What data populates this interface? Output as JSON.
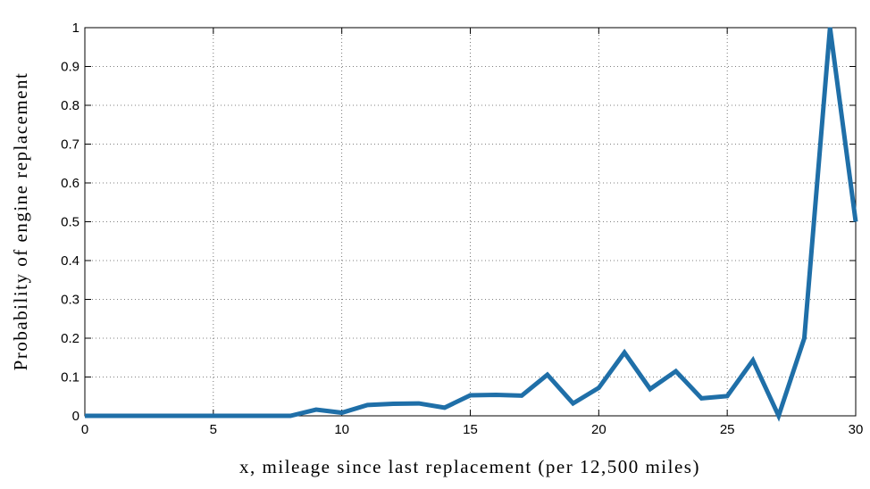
{
  "chart_data": {
    "type": "line",
    "xlabel": "x, mileage since last replacement (per 12,500 miles)",
    "ylabel": "Probability of engine replacement",
    "x": [
      0,
      1,
      2,
      3,
      4,
      5,
      6,
      7,
      8,
      9,
      10,
      11,
      12,
      13,
      14,
      15,
      16,
      17,
      18,
      19,
      20,
      21,
      22,
      23,
      24,
      25,
      26,
      27,
      28,
      29,
      30
    ],
    "series": [
      {
        "color": "#1f6fa8",
        "values": [
          0,
          0,
          0,
          0,
          0,
          0,
          0,
          0,
          0,
          0.016,
          0.008,
          0.028,
          0.031,
          0.032,
          0.021,
          0.053,
          0.054,
          0.052,
          0.106,
          0.032,
          0.072,
          0.163,
          0.069,
          0.115,
          0.045,
          0.051,
          0.143,
          0,
          0.2,
          1,
          0.5
        ]
      }
    ],
    "xlim": [
      0,
      30
    ],
    "xticks": [
      0,
      5,
      10,
      15,
      20,
      25,
      30
    ],
    "ylim": [
      0,
      1
    ],
    "yticks": [
      0,
      0.1,
      0.2,
      0.3,
      0.4,
      0.5,
      0.6,
      0.7,
      0.8,
      0.9,
      1
    ],
    "grid": true
  }
}
